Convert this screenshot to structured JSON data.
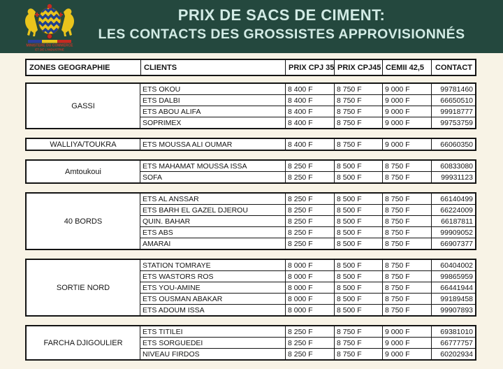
{
  "header": {
    "title_line1": "PRIX DE SACS DE CIMENT:",
    "title_line2": "LES CONTACTS DES GROSSISTES APPROVISIONNÉS",
    "band_color": "#24483e",
    "title_color": "#d2ebe5",
    "logo": {
      "name": "chad-coat-of-arms",
      "caption_line1": "MINISTERE DU COMMERCE",
      "caption_line2": "ET DE L'INDUSTRIE"
    }
  },
  "table": {
    "columns": [
      "ZONES GEOGRAPHIE",
      "CLIENTS",
      "PRIX CPJ 35",
      "PRIX CPJ45",
      "CEMII 42,5",
      "CONTACT"
    ],
    "groups": [
      {
        "zone": "GASSI",
        "rows": [
          {
            "client": "ETS OKOU",
            "cpj35": "8 400 F",
            "cpj45": "8 750 F",
            "cemii": "9 000 F",
            "contact": "99781460"
          },
          {
            "client": "ETS DALBI",
            "cpj35": "8 400 F",
            "cpj45": "8 750 F",
            "cemii": "9 000 F",
            "contact": "66650510"
          },
          {
            "client": "ETS ABOU ALIFA",
            "cpj35": "8 400 F",
            "cpj45": "8 750 F",
            "cemii": "9 000 F",
            "contact": "99918777"
          },
          {
            "client": "SOPRIMEX",
            "cpj35": "8 400 F",
            "cpj45": "8 750 F",
            "cemii": "9 000 F",
            "contact": "99753759"
          }
        ]
      },
      {
        "zone": "WALLIYA/TOUKRA",
        "rows": [
          {
            "client": "ETS MOUSSA ALI OUMAR",
            "cpj35": "8 400 F",
            "cpj45": "8 750 F",
            "cemii": "9 000 F",
            "contact": "66060350"
          }
        ]
      },
      {
        "zone": "Amtoukoui",
        "rows": [
          {
            "client": "ETS MAHAMAT MOUSSA ISSA",
            "cpj35": "8 250 F",
            "cpj45": "8 500 F",
            "cemii": "8 750 F",
            "contact": "60833080"
          },
          {
            "client": "SOFA",
            "cpj35": "8 250 F",
            "cpj45": "8 500 F",
            "cemii": "8 750 F",
            "contact": "99931123"
          }
        ]
      },
      {
        "zone": "40 BORDS",
        "rows": [
          {
            "client": "ETS AL ANSSAR",
            "cpj35": "8 250 F",
            "cpj45": "8 500 F",
            "cemii": "8 750 F",
            "contact": "66140499"
          },
          {
            "client": "ETS BARH EL GAZEL DJEROU",
            "cpj35": "8 250 F",
            "cpj45": "8 500 F",
            "cemii": "8 750 F",
            "contact": "66224009"
          },
          {
            "client": "QUIN. BAHAR",
            "cpj35": "8 250 F",
            "cpj45": "8 500 F",
            "cemii": "8 750 F",
            "contact": "66187811"
          },
          {
            "client": "ETS ABS",
            "cpj35": "8 250 F",
            "cpj45": "8 500 F",
            "cemii": "8 750 F",
            "contact": "99909052"
          },
          {
            "client": "AMARAI",
            "cpj35": "8 250 F",
            "cpj45": "8 500 F",
            "cemii": "8 750 F",
            "contact": "66907377"
          }
        ]
      },
      {
        "zone": "SORTIE NORD",
        "rows": [
          {
            "client": "STATION TOMRAYE",
            "cpj35": "8 000 F",
            "cpj45": "8 500 F",
            "cemii": "8 750 F",
            "contact": "60404002"
          },
          {
            "client": "ETS WASTORS ROS",
            "cpj35": "8 000 F",
            "cpj45": "8 500 F",
            "cemii": "8 750 F",
            "contact": "99865959"
          },
          {
            "client": "ETS YOU-AMINE",
            "cpj35": "8 000 F",
            "cpj45": "8 500 F",
            "cemii": "8 750 F",
            "contact": "66441944"
          },
          {
            "client": "ETS OUSMAN ABAKAR",
            "cpj35": "8 000 F",
            "cpj45": "8 500 F",
            "cemii": "8 750 F",
            "contact": "99189458"
          },
          {
            "client": "ETS ADOUM ISSA",
            "cpj35": "8 000 F",
            "cpj45": "8 500 F",
            "cemii": "8 750 F",
            "contact": "99907893"
          }
        ]
      },
      {
        "zone": "FARCHA DJIGOULIER",
        "rows": [
          {
            "client": "ETS TITILEI",
            "cpj35": "8 250 F",
            "cpj45": "8 750 F",
            "cemii": "9 000 F",
            "contact": "69381010"
          },
          {
            "client": "ETS SORGUEDEI",
            "cpj35": "8 250 F",
            "cpj45": "8 750 F",
            "cemii": "9 000 F",
            "contact": "66777757"
          },
          {
            "client": "NIVEAU FIRDOS",
            "cpj35": "8 250 F",
            "cpj45": "8 750 F",
            "cemii": "9 000 F",
            "contact": "60202934"
          }
        ]
      }
    ]
  }
}
